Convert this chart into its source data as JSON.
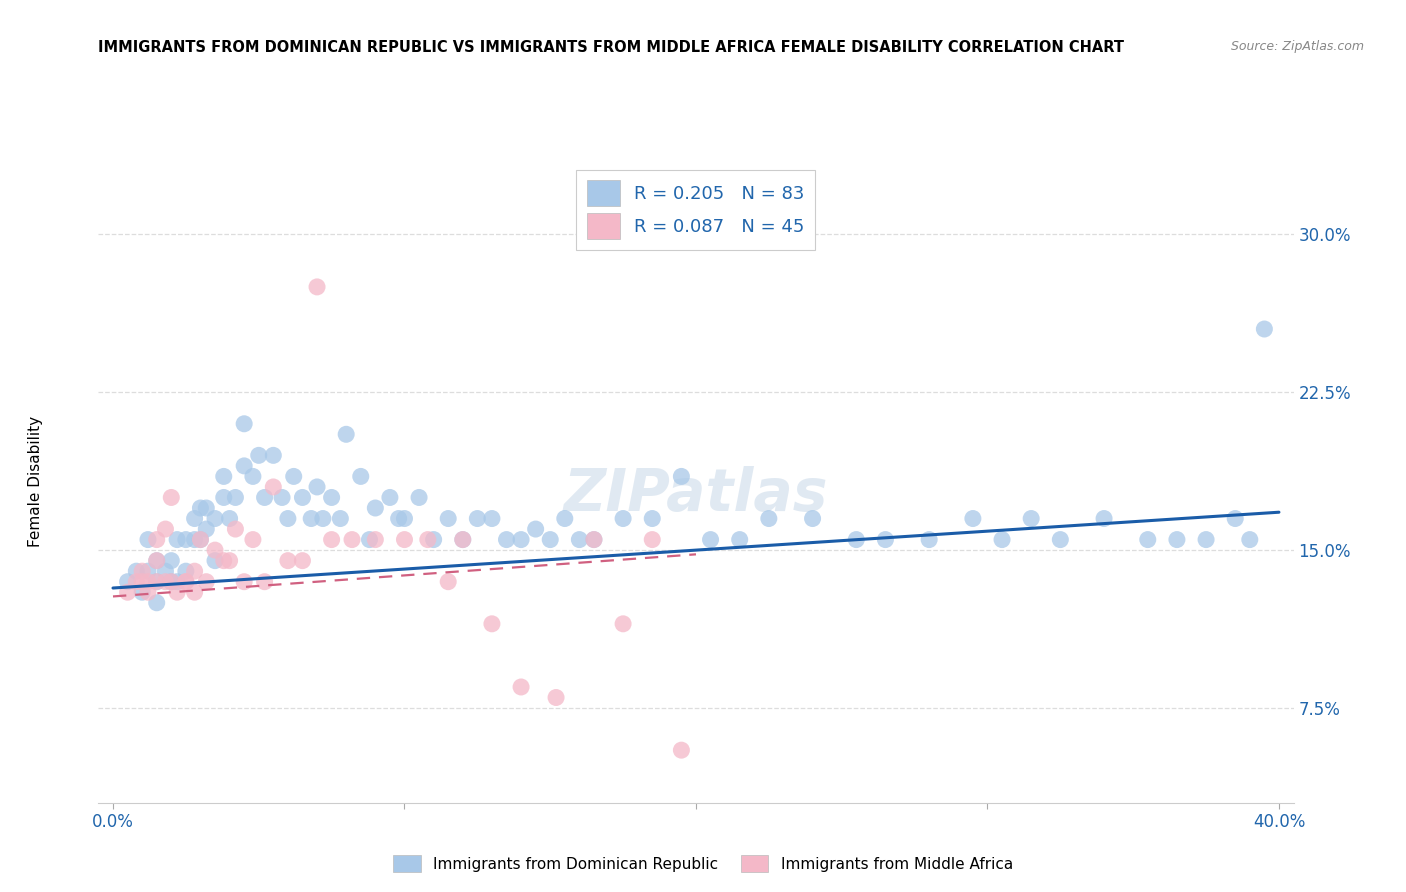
{
  "title": "IMMIGRANTS FROM DOMINICAN REPUBLIC VS IMMIGRANTS FROM MIDDLE AFRICA FEMALE DISABILITY CORRELATION CHART",
  "source": "Source: ZipAtlas.com",
  "ylabel": "Female Disability",
  "ytick_vals": [
    0.075,
    0.15,
    0.225,
    0.3
  ],
  "ytick_labels": [
    "7.5%",
    "15.0%",
    "22.5%",
    "30.0%"
  ],
  "xlim": [
    -0.005,
    0.405
  ],
  "ylim": [
    0.03,
    0.335
  ],
  "color_blue": "#a8c8e8",
  "color_pink": "#f4b8c8",
  "color_line_blue": "#1a5ca8",
  "color_line_pink": "#d06080",
  "legend_blue_label": "Immigrants from Dominican Republic",
  "legend_pink_label": "Immigrants from Middle Africa",
  "R_blue": "0.205",
  "N_blue": "83",
  "R_pink": "0.087",
  "N_pink": "45",
  "blue_x": [
    0.005,
    0.008,
    0.01,
    0.012,
    0.012,
    0.015,
    0.015,
    0.015,
    0.018,
    0.02,
    0.02,
    0.022,
    0.022,
    0.025,
    0.025,
    0.028,
    0.028,
    0.03,
    0.03,
    0.032,
    0.032,
    0.035,
    0.035,
    0.038,
    0.038,
    0.04,
    0.042,
    0.045,
    0.045,
    0.048,
    0.05,
    0.052,
    0.055,
    0.058,
    0.06,
    0.062,
    0.065,
    0.068,
    0.07,
    0.072,
    0.075,
    0.078,
    0.08,
    0.085,
    0.088,
    0.09,
    0.095,
    0.098,
    0.1,
    0.105,
    0.11,
    0.115,
    0.12,
    0.125,
    0.13,
    0.135,
    0.14,
    0.145,
    0.15,
    0.155,
    0.16,
    0.165,
    0.175,
    0.185,
    0.195,
    0.205,
    0.215,
    0.225,
    0.24,
    0.255,
    0.265,
    0.28,
    0.295,
    0.305,
    0.315,
    0.325,
    0.34,
    0.355,
    0.365,
    0.375,
    0.385,
    0.39,
    0.395
  ],
  "blue_y": [
    0.135,
    0.14,
    0.13,
    0.14,
    0.155,
    0.125,
    0.135,
    0.145,
    0.14,
    0.135,
    0.145,
    0.135,
    0.155,
    0.14,
    0.155,
    0.155,
    0.165,
    0.155,
    0.17,
    0.16,
    0.17,
    0.145,
    0.165,
    0.175,
    0.185,
    0.165,
    0.175,
    0.19,
    0.21,
    0.185,
    0.195,
    0.175,
    0.195,
    0.175,
    0.165,
    0.185,
    0.175,
    0.165,
    0.18,
    0.165,
    0.175,
    0.165,
    0.205,
    0.185,
    0.155,
    0.17,
    0.175,
    0.165,
    0.165,
    0.175,
    0.155,
    0.165,
    0.155,
    0.165,
    0.165,
    0.155,
    0.155,
    0.16,
    0.155,
    0.165,
    0.155,
    0.155,
    0.165,
    0.165,
    0.185,
    0.155,
    0.155,
    0.165,
    0.165,
    0.155,
    0.155,
    0.155,
    0.165,
    0.155,
    0.165,
    0.155,
    0.165,
    0.155,
    0.155,
    0.155,
    0.165,
    0.155,
    0.255
  ],
  "pink_x": [
    0.005,
    0.008,
    0.01,
    0.01,
    0.012,
    0.012,
    0.015,
    0.015,
    0.015,
    0.018,
    0.018,
    0.02,
    0.02,
    0.022,
    0.025,
    0.025,
    0.028,
    0.028,
    0.03,
    0.032,
    0.035,
    0.038,
    0.04,
    0.042,
    0.045,
    0.048,
    0.052,
    0.055,
    0.06,
    0.065,
    0.07,
    0.075,
    0.082,
    0.09,
    0.1,
    0.108,
    0.115,
    0.12,
    0.13,
    0.14,
    0.152,
    0.165,
    0.175,
    0.185,
    0.195
  ],
  "pink_y": [
    0.13,
    0.135,
    0.14,
    0.135,
    0.135,
    0.13,
    0.135,
    0.145,
    0.155,
    0.135,
    0.16,
    0.135,
    0.175,
    0.13,
    0.135,
    0.135,
    0.13,
    0.14,
    0.155,
    0.135,
    0.15,
    0.145,
    0.145,
    0.16,
    0.135,
    0.155,
    0.135,
    0.18,
    0.145,
    0.145,
    0.275,
    0.155,
    0.155,
    0.155,
    0.155,
    0.155,
    0.135,
    0.155,
    0.115,
    0.085,
    0.08,
    0.155,
    0.115,
    0.155,
    0.055
  ],
  "blue_trendline_x": [
    0.0,
    0.4
  ],
  "blue_trendline_y": [
    0.132,
    0.168
  ],
  "pink_trendline_x": [
    0.0,
    0.2
  ],
  "pink_trendline_y": [
    0.128,
    0.148
  ],
  "background_color": "#ffffff",
  "grid_color": "#dddddd"
}
